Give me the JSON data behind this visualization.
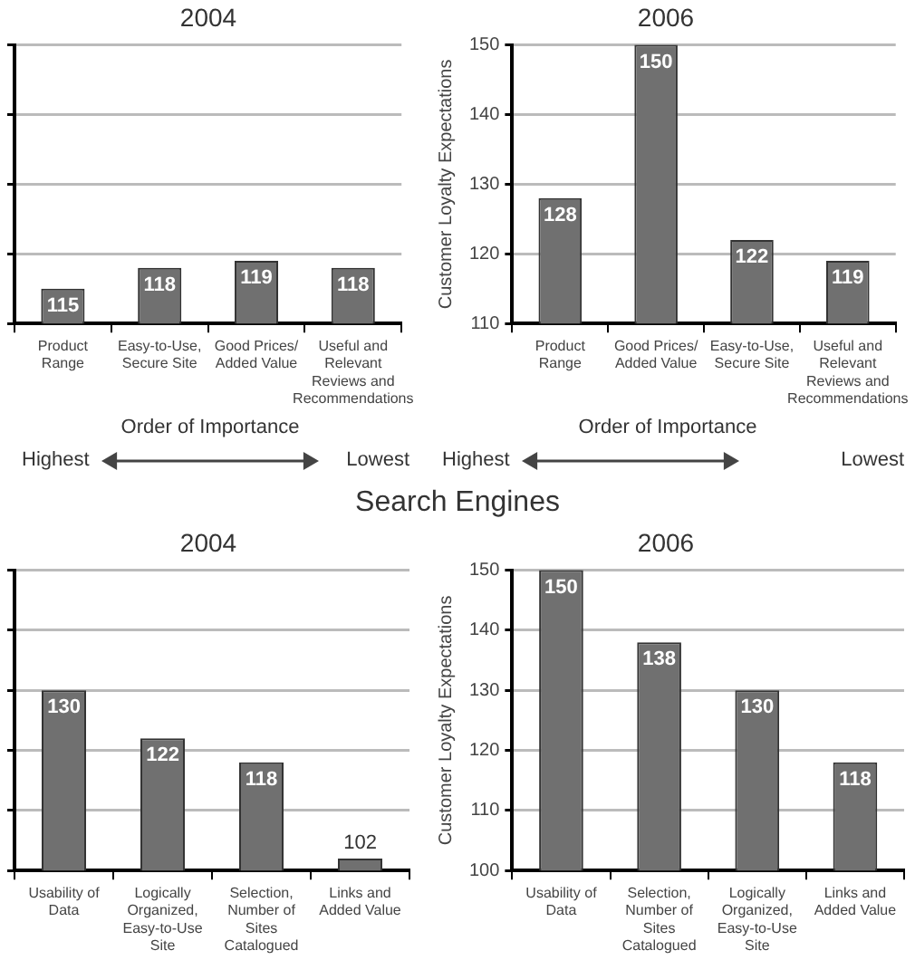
{
  "chart_data": [
    {
      "type": "bar",
      "title": "2004",
      "categories": [
        "Product Range",
        "Easy-to-Use, Secure Site",
        "Good Prices/ Added Value",
        "Useful and Relevant Reviews and Recommendations"
      ],
      "values": [
        115,
        118,
        119,
        118
      ],
      "color": "#707070",
      "ylim": [
        110,
        150
      ],
      "yticks": [
        {
          "value": 110,
          "label": null
        },
        {
          "value": 120,
          "label": null
        },
        {
          "value": 130,
          "label": null
        },
        {
          "value": 140,
          "label": null
        },
        {
          "value": 150,
          "label": null
        }
      ],
      "grid": "y",
      "tick_labels": "x",
      "data_labels": true,
      "annotations": [
        "Order of Importance",
        "Highest",
        "Lowest"
      ]
    },
    {
      "type": "bar",
      "title": "2006",
      "ylabel": "Customer Loyalty Expectations",
      "categories": [
        "Product Range",
        "Good Prices/ Added Value",
        "Easy-to-Use, Secure Site",
        "Useful and Relevant Reviews and Recommendations"
      ],
      "values": [
        128,
        150,
        122,
        119
      ],
      "color": "#707070",
      "ylim": [
        110,
        150
      ],
      "yticks": [
        110,
        120,
        130,
        140,
        150
      ],
      "grid": "y",
      "data_labels": true,
      "annotations": [
        "Order of Importance",
        "Highest",
        "Lowest"
      ]
    },
    {
      "type": "bar",
      "title": "2004",
      "categories": [
        "Usability of Data",
        "Logically Organized, Easy-to-Use Site",
        "Selection, Number of Sites Catalogued",
        "Links and Added Value"
      ],
      "values": [
        130,
        122,
        118,
        102
      ],
      "color": "#707070",
      "ylim": [
        100,
        150
      ],
      "yticks": [
        {
          "value": 100,
          "label": null
        },
        {
          "value": 110,
          "label": null
        },
        {
          "value": 120,
          "label": null
        },
        {
          "value": 130,
          "label": null
        },
        {
          "value": 140,
          "label": null
        },
        {
          "value": 150,
          "label": null
        }
      ],
      "grid": "y",
      "tick_labels": "x",
      "data_labels": true,
      "annotations": [
        "Search Engines"
      ]
    },
    {
      "type": "bar",
      "title": "2006",
      "ylabel": "Customer Loyalty Expectations",
      "categories": [
        "Usability of Data",
        "Selection, Number of Sites Catalogued",
        "Logically Organized, Easy-to-Use Site",
        "Links and Added Value"
      ],
      "values": [
        150,
        138,
        130,
        118
      ],
      "color": "#707070",
      "ylim": [
        100,
        150
      ],
      "yticks": [
        100,
        110,
        120,
        130,
        140,
        150
      ],
      "grid": "y",
      "data_labels": true
    }
  ]
}
